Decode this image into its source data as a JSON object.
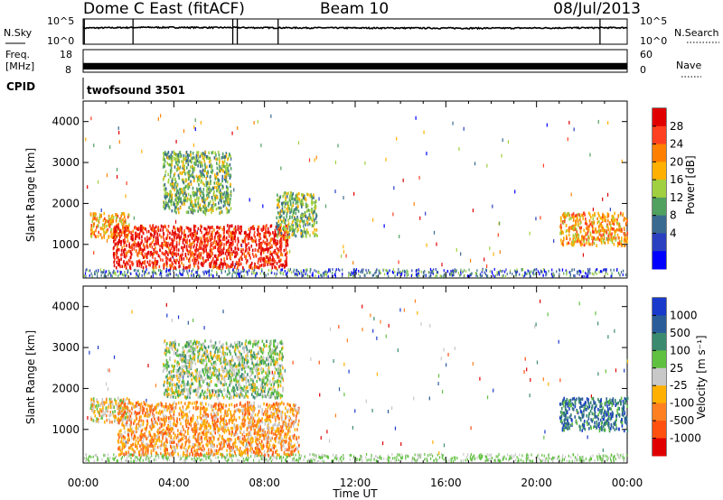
{
  "chart_data": [
    {
      "type": "line",
      "title": "Dome C East (fitACF)",
      "beam_label": "Beam 10",
      "date": "08/Jul/2013",
      "left_axis": {
        "label_top": "N.Sky",
        "ticks": [
          "10^5",
          "10^0"
        ]
      },
      "right_axis": {
        "label": "N.Search",
        "ticks": [
          "10^5",
          "10^0"
        ]
      },
      "x_range_hours": [
        0,
        24
      ],
      "series": [
        {
          "x": [
            0,
            3,
            6,
            9,
            12,
            15,
            18,
            21,
            24
          ],
          "y": [
            1600,
            2200,
            2000,
            1800,
            1700,
            1600,
            1500,
            1700,
            1900
          ]
        }
      ],
      "y_scale": "log",
      "ylim": [
        1,
        100000
      ],
      "spikes_hours": [
        0.05,
        2.2,
        6.6,
        6.8,
        8.6,
        22.8
      ]
    },
    {
      "type": "line",
      "left_axis": {
        "label_lines": [
          "Freq.",
          "[MHz]"
        ],
        "ticks": [
          "18",
          "8"
        ]
      },
      "right_axis": {
        "label": "Nave",
        "ticks": [
          "60",
          "0"
        ]
      },
      "x_range_hours": [
        0,
        24
      ],
      "ylim": [
        8,
        18
      ],
      "band_mhz": [
        10.4,
        10.9
      ]
    },
    {
      "type": "table",
      "row_label": "CPID",
      "value": "twofsound 3501"
    },
    {
      "type": "heatmap",
      "ylabel": "Slant Range [km]",
      "xlabel": "",
      "xlim_hours": [
        0,
        24
      ],
      "ylim_km": [
        180,
        4500
      ],
      "yticks": [
        "1000",
        "2000",
        "3000",
        "4000"
      ],
      "colorbar": {
        "label": "Power [dB]",
        "ticks": [
          "28",
          "24",
          "20",
          "16",
          "12",
          "8",
          "4"
        ],
        "colors": [
          "#e00000",
          "#ff4020",
          "#ff8000",
          "#ffb000",
          "#a0d040",
          "#50a060",
          "#3a6a90",
          "#2a40c0",
          "#0000ff"
        ]
      },
      "regions": [
        {
          "x": [
            0.3,
            2.0
          ],
          "y_km": [
            1200,
            1800
          ],
          "level_db": 18
        },
        {
          "x": [
            1.3,
            9.0
          ],
          "y_km": [
            450,
            1500
          ],
          "level_db": 28
        },
        {
          "x": [
            3.5,
            6.5
          ],
          "y_km": [
            1800,
            3300
          ],
          "level_db": 14
        },
        {
          "x": [
            8.5,
            10.3
          ],
          "y_km": [
            1200,
            2300
          ],
          "level_db": 12
        },
        {
          "x": [
            21.0,
            24.0
          ],
          "y_km": [
            1000,
            1800
          ],
          "level_db": 20
        }
      ]
    },
    {
      "type": "heatmap",
      "ylabel": "Slant Range [km]",
      "xlabel": "Time UT",
      "xlim_hours": [
        0,
        24
      ],
      "ylim_km": [
        180,
        4500
      ],
      "xticks": [
        "00:00",
        "04:00",
        "08:00",
        "12:00",
        "16:00",
        "20:00",
        "00:00"
      ],
      "yticks": [
        "1000",
        "2000",
        "3000",
        "4000"
      ],
      "colorbar": {
        "label": "Velocity [m s⁻¹]",
        "ticks": [
          "1000",
          "500",
          "100",
          "25",
          "-25",
          "-100",
          "-500",
          "-1000"
        ],
        "colors": [
          "#1a3acc",
          "#2a5c9a",
          "#3a8a70",
          "#60c040",
          "#c8c8c8",
          "#ffb000",
          "#ff8020",
          "#ff5010",
          "#e00000"
        ]
      },
      "regions": [
        {
          "x": [
            0.3,
            2.0
          ],
          "y_km": [
            1200,
            1800
          ],
          "velocity": -100
        },
        {
          "x": [
            1.5,
            9.5
          ],
          "y_km": [
            400,
            1700
          ],
          "velocity": -250
        },
        {
          "x": [
            3.5,
            8.8
          ],
          "y_km": [
            1800,
            3200
          ],
          "velocity": 0
        },
        {
          "x": [
            21.0,
            24.0
          ],
          "y_km": [
            1000,
            1800
          ],
          "velocity": 200
        }
      ]
    }
  ]
}
